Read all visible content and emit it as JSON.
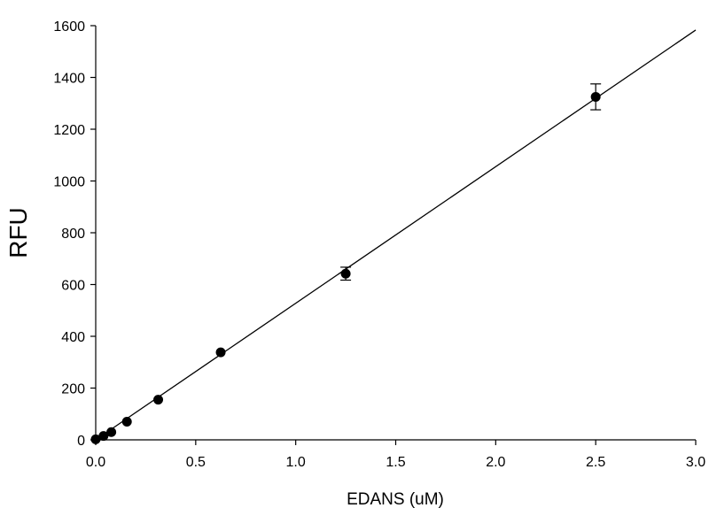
{
  "chart_data": {
    "type": "scatter",
    "title": "",
    "xlabel": "EDANS (uM)",
    "ylabel": "RFU",
    "xlim": [
      0,
      3.0
    ],
    "ylim": [
      0,
      1600
    ],
    "x_ticks": [
      "0.0",
      "0.5",
      "1.0",
      "1.5",
      "2.0",
      "2.5",
      "3.0"
    ],
    "y_ticks": [
      "0",
      "200",
      "400",
      "600",
      "800",
      "1000",
      "1200",
      "1400",
      "1600"
    ],
    "grid": false,
    "legend": "none",
    "series": [
      {
        "x": [
          0,
          0.039,
          0.078,
          0.156,
          0.3125,
          0.625,
          1.25,
          2.5
        ],
        "y": [
          2,
          15,
          30,
          70,
          155,
          338,
          642,
          1325
        ],
        "error": [
          3,
          4,
          5,
          8,
          9,
          10,
          25,
          50
        ]
      }
    ],
    "fit_line": {
      "type": "linear",
      "x": [
        0,
        3.0
      ],
      "y": [
        0,
        1583
      ]
    },
    "colors": {
      "marker": "#000000",
      "line": "#000000",
      "axis": "#000000"
    }
  }
}
